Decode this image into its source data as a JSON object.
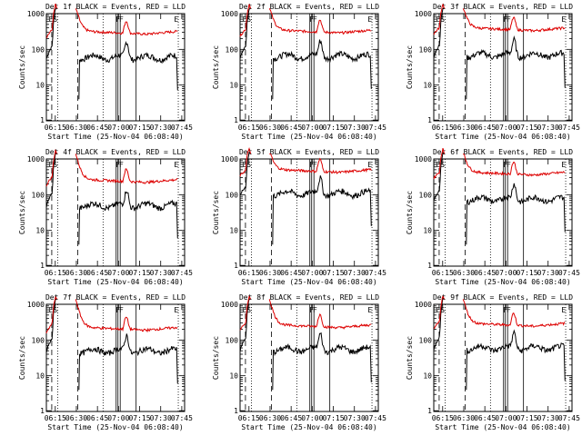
{
  "chart_data": [
    {
      "type": "line",
      "title": "Det 1f BLACK = Events, RED = LLD",
      "xlabel": "Start Time (25-Nov-04 06:08:40)",
      "ylabel": "Counts/sec",
      "yscale": "log",
      "ylim": [
        1,
        1000
      ],
      "xticks": [
        "06:15",
        "06:30",
        "06:45",
        "07:00",
        "07:15",
        "07:30",
        "07:45"
      ],
      "yticks": [
        "1",
        "10",
        "100",
        "1000"
      ],
      "markers": [
        "E",
        "S",
        "F",
        "F",
        "E"
      ],
      "series": [
        {
          "name": "Events",
          "color": "#000000",
          "level": 60
        },
        {
          "name": "LLD",
          "color": "#dd0000",
          "level": 240
        }
      ]
    },
    {
      "type": "line",
      "title": "Det 2f BLACK = Events, RED = LLD",
      "xlabel": "Start Time (25-Nov-04 06:08:40)",
      "ylabel": "Counts/sec",
      "yscale": "log",
      "ylim": [
        1,
        1000
      ],
      "xticks": [
        "06:15",
        "06:30",
        "06:45",
        "07:00",
        "07:15",
        "07:30",
        "07:45"
      ],
      "yticks": [
        "1",
        "10",
        "100",
        "1000"
      ],
      "markers": [
        "E",
        "S",
        "F",
        "F",
        "E"
      ],
      "series": [
        {
          "name": "Events",
          "color": "#000000",
          "level": 65
        },
        {
          "name": "LLD",
          "color": "#dd0000",
          "level": 260
        }
      ]
    },
    {
      "type": "line",
      "title": "Det 3f BLACK = Events, RED = LLD",
      "xlabel": "Start Time (25-Nov-04 06:08:40)",
      "ylabel": "Counts/sec",
      "yscale": "log",
      "ylim": [
        1,
        1000
      ],
      "xticks": [
        "06:15",
        "06:30",
        "06:45",
        "07:00",
        "07:15",
        "07:30",
        "07:45"
      ],
      "yticks": [
        "1",
        "10",
        "100",
        "1000"
      ],
      "markers": [
        "E",
        "S",
        "F",
        "F",
        "E"
      ],
      "series": [
        {
          "name": "Events",
          "color": "#000000",
          "level": 70
        },
        {
          "name": "LLD",
          "color": "#dd0000",
          "level": 300
        }
      ]
    },
    {
      "type": "line",
      "title": "Det 4f BLACK = Events, RED = LLD",
      "xlabel": "Start Time (25-Nov-04 06:08:40)",
      "ylabel": "Counts/sec",
      "yscale": "log",
      "ylim": [
        1,
        1000
      ],
      "xticks": [
        "06:15",
        "06:30",
        "06:45",
        "07:00",
        "07:15",
        "07:30",
        "07:45"
      ],
      "yticks": [
        "1",
        "10",
        "100",
        "1000"
      ],
      "markers": [
        "E",
        "S",
        "F",
        "F",
        "E"
      ],
      "series": [
        {
          "name": "Events",
          "color": "#000000",
          "level": 50
        },
        {
          "name": "LLD",
          "color": "#dd0000",
          "level": 200
        }
      ]
    },
    {
      "type": "line",
      "title": "Det 5f BLACK = Events, RED = LLD",
      "xlabel": "Start Time (25-Nov-04 06:08:40)",
      "ylabel": "Counts/sec",
      "yscale": "log",
      "ylim": [
        1,
        1000
      ],
      "xticks": [
        "06:15",
        "06:30",
        "06:45",
        "07:00",
        "07:15",
        "07:30",
        "07:45"
      ],
      "yticks": [
        "1",
        "10",
        "100",
        "1000"
      ],
      "markers": [
        "E",
        "S",
        "F",
        "F",
        "E"
      ],
      "series": [
        {
          "name": "Events",
          "color": "#000000",
          "level": 110
        },
        {
          "name": "LLD",
          "color": "#dd0000",
          "level": 380
        }
      ]
    },
    {
      "type": "line",
      "title": "Det 6f BLACK = Events, RED = LLD",
      "xlabel": "Start Time (25-Nov-04 06:08:40)",
      "ylabel": "Counts/sec",
      "yscale": "log",
      "ylim": [
        1,
        1000
      ],
      "xticks": [
        "06:15",
        "06:30",
        "06:45",
        "07:00",
        "07:15",
        "07:30",
        "07:45"
      ],
      "yticks": [
        "1",
        "10",
        "100",
        "1000"
      ],
      "markers": [
        "E",
        "S",
        "F",
        "F",
        "E"
      ],
      "series": [
        {
          "name": "Events",
          "color": "#000000",
          "level": 75
        },
        {
          "name": "LLD",
          "color": "#dd0000",
          "level": 320
        }
      ]
    },
    {
      "type": "line",
      "title": "Det 7f BLACK = Events, RED = LLD",
      "xlabel": "Start Time (25-Nov-04 06:08:40)",
      "ylabel": "Counts/sec",
      "yscale": "log",
      "ylim": [
        1,
        1000
      ],
      "xticks": [
        "06:15",
        "06:30",
        "06:45",
        "07:00",
        "07:15",
        "07:30",
        "07:45"
      ],
      "yticks": [
        "1",
        "10",
        "100",
        "1000"
      ],
      "markers": [
        "E",
        "S",
        "F",
        "F",
        "E"
      ],
      "series": [
        {
          "name": "Events",
          "color": "#000000",
          "level": 50
        },
        {
          "name": "LLD",
          "color": "#dd0000",
          "level": 170
        }
      ]
    },
    {
      "type": "line",
      "title": "Det 8f BLACK = Events, RED = LLD",
      "xlabel": "Start Time (25-Nov-04 06:08:40)",
      "ylabel": "Counts/sec",
      "yscale": "log",
      "ylim": [
        1,
        1000
      ],
      "xticks": [
        "06:15",
        "06:30",
        "06:45",
        "07:00",
        "07:15",
        "07:30",
        "07:45"
      ],
      "yticks": [
        "1",
        "10",
        "100",
        "1000"
      ],
      "markers": [
        "E",
        "S",
        "F",
        "F",
        "E"
      ],
      "series": [
        {
          "name": "Events",
          "color": "#000000",
          "level": 55
        },
        {
          "name": "LLD",
          "color": "#dd0000",
          "level": 200
        }
      ]
    },
    {
      "type": "line",
      "title": "Det 9f BLACK = Events, RED = LLD",
      "xlabel": "Start Time (25-Nov-04 06:08:40)",
      "ylabel": "Counts/sec",
      "yscale": "log",
      "ylim": [
        1,
        1000
      ],
      "xticks": [
        "06:15",
        "06:30",
        "06:45",
        "07:00",
        "07:15",
        "07:30",
        "07:45"
      ],
      "yticks": [
        "1",
        "10",
        "100",
        "1000"
      ],
      "markers": [
        "E",
        "S",
        "F",
        "F",
        "E"
      ],
      "series": [
        {
          "name": "Events",
          "color": "#000000",
          "level": 60
        },
        {
          "name": "LLD",
          "color": "#dd0000",
          "level": 220
        }
      ]
    }
  ]
}
